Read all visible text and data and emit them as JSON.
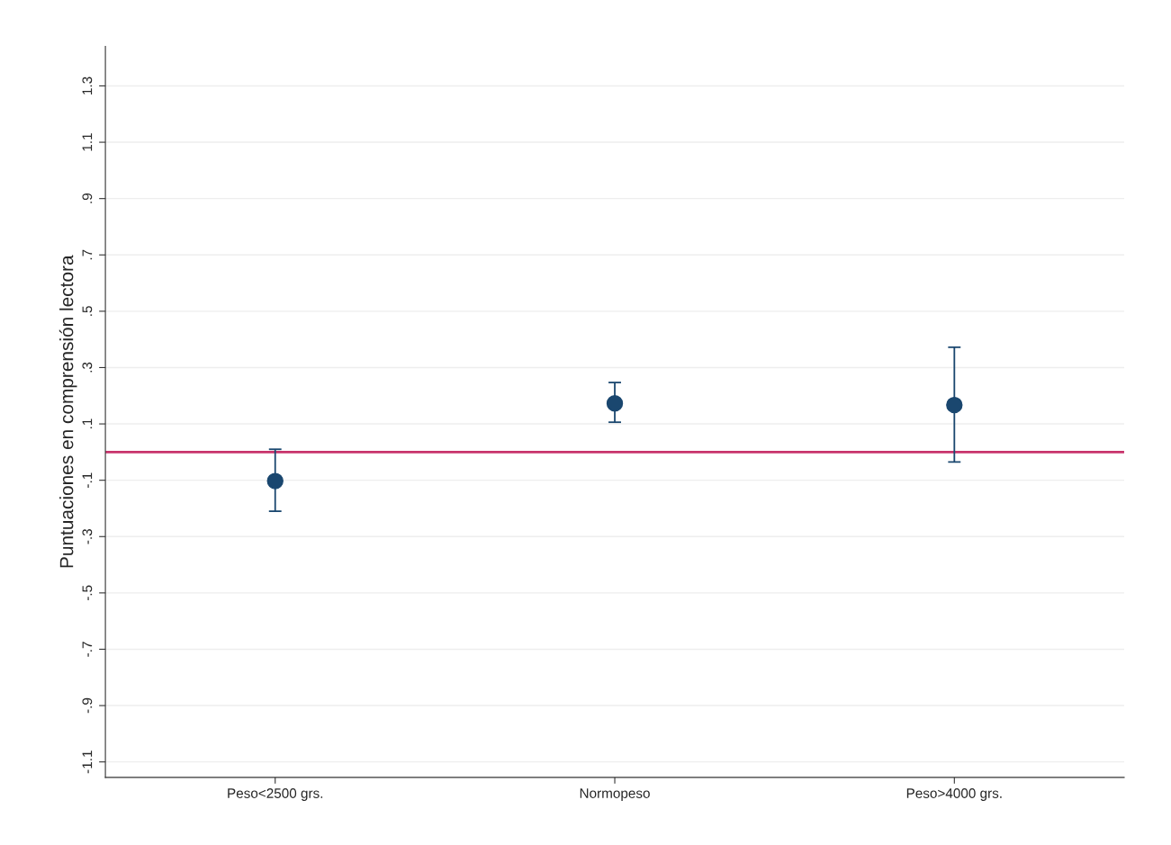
{
  "chart_data": {
    "type": "scatter",
    "ylabel": "Puntuaciones en comprensión lectora",
    "categories": [
      "Peso<2500 grs.",
      "Normopeso",
      "Peso>4000 grs."
    ],
    "values": [
      -0.103,
      0.173,
      0.167
    ],
    "errors": [
      [
        -0.21,
        0.01
      ],
      [
        0.106,
        0.247
      ],
      [
        -0.035,
        0.372
      ]
    ],
    "color": "#1a476f",
    "marker": "circle",
    "ylim": [
      -1.155,
      1.44
    ],
    "yticks": [
      {
        "value": -1.1,
        "label": "-1.1"
      },
      {
        "value": -0.9,
        "label": "-.9"
      },
      {
        "value": -0.7,
        "label": "-.7"
      },
      {
        "value": -0.5,
        "label": "-.5"
      },
      {
        "value": -0.3,
        "label": "-.3"
      },
      {
        "value": -0.1,
        "label": "-.1"
      },
      {
        "value": 0.1,
        "label": ".1"
      },
      {
        "value": 0.3,
        "label": ".3"
      },
      {
        "value": 0.5,
        "label": ".5"
      },
      {
        "value": 0.7,
        "label": ".7"
      },
      {
        "value": 0.9,
        "label": ".9"
      },
      {
        "value": 1.1,
        "label": "1.1"
      },
      {
        "value": 1.3,
        "label": "1.3"
      }
    ],
    "grid": "y",
    "ref_lines": [
      {
        "axis": "y",
        "value": 0,
        "color": "#c8336b"
      }
    ]
  }
}
